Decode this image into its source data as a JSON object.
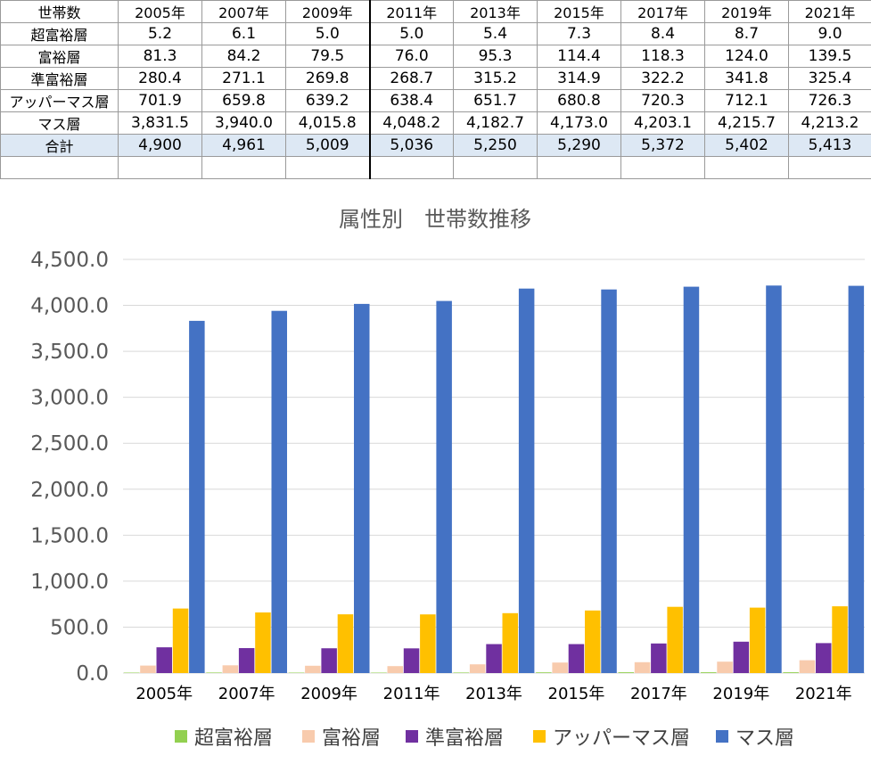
{
  "table": {
    "corner": "世帯数",
    "years": [
      "2005年",
      "2007年",
      "2009年",
      "2011年",
      "2013年",
      "2015年",
      "2017年",
      "2019年",
      "2021年"
    ],
    "rows": [
      {
        "label": "超富裕層",
        "values": [
          "5.2",
          "6.1",
          "5.0",
          "5.0",
          "5.4",
          "7.3",
          "8.4",
          "8.7",
          "9.0"
        ]
      },
      {
        "label": "富裕層",
        "values": [
          "81.3",
          "84.2",
          "79.5",
          "76.0",
          "95.3",
          "114.4",
          "118.3",
          "124.0",
          "139.5"
        ]
      },
      {
        "label": "準富裕層",
        "values": [
          "280.4",
          "271.1",
          "269.8",
          "268.7",
          "315.2",
          "314.9",
          "322.2",
          "341.8",
          "325.4"
        ]
      },
      {
        "label": "アッパーマス層",
        "values": [
          "701.9",
          "659.8",
          "639.2",
          "638.4",
          "651.7",
          "680.8",
          "720.3",
          "712.1",
          "726.3"
        ]
      },
      {
        "label": "マス層",
        "values": [
          "3,831.5",
          "3,940.0",
          "4,015.8",
          "4,048.2",
          "4,182.7",
          "4,173.0",
          "4,203.1",
          "4,215.7",
          "4,213.2"
        ]
      }
    ],
    "total": {
      "label": "合計",
      "values": [
        "4,900",
        "4,961",
        "5,009",
        "5,036",
        "5,250",
        "5,290",
        "5,372",
        "5,402",
        "5,413"
      ]
    }
  },
  "chart_data": {
    "type": "bar",
    "title": "属性別　世帯数推移",
    "categories": [
      "2005年",
      "2007年",
      "2009年",
      "2011年",
      "2013年",
      "2015年",
      "2017年",
      "2019年",
      "2021年"
    ],
    "series": [
      {
        "name": "超富裕層",
        "color": "#92d050",
        "values": [
          5.2,
          6.1,
          5.0,
          5.0,
          5.4,
          7.3,
          8.4,
          8.7,
          9.0
        ]
      },
      {
        "name": "富裕層",
        "color": "#f8cbad",
        "values": [
          81.3,
          84.2,
          79.5,
          76.0,
          95.3,
          114.4,
          118.3,
          124.0,
          139.5
        ]
      },
      {
        "name": "準富裕層",
        "color": "#7030a0",
        "values": [
          280.4,
          271.1,
          269.8,
          268.7,
          315.2,
          314.9,
          322.2,
          341.8,
          325.4
        ]
      },
      {
        "name": "アッパーマス層",
        "color": "#ffc000",
        "values": [
          701.9,
          659.8,
          639.2,
          638.4,
          651.7,
          680.8,
          720.3,
          712.1,
          726.3
        ]
      },
      {
        "name": "マス層",
        "color": "#4472c4",
        "values": [
          3831.5,
          3940.0,
          4015.8,
          4048.2,
          4182.7,
          4173.0,
          4203.1,
          4215.7,
          4213.2
        ]
      }
    ],
    "ylim": [
      0,
      4500
    ],
    "yticks": [
      "0.0",
      "500.0",
      "1,000.0",
      "1,500.0",
      "2,000.0",
      "2,500.0",
      "3,000.0",
      "3,500.0",
      "4,000.0",
      "4,500.0"
    ],
    "grid": true,
    "legend": "bottom"
  }
}
